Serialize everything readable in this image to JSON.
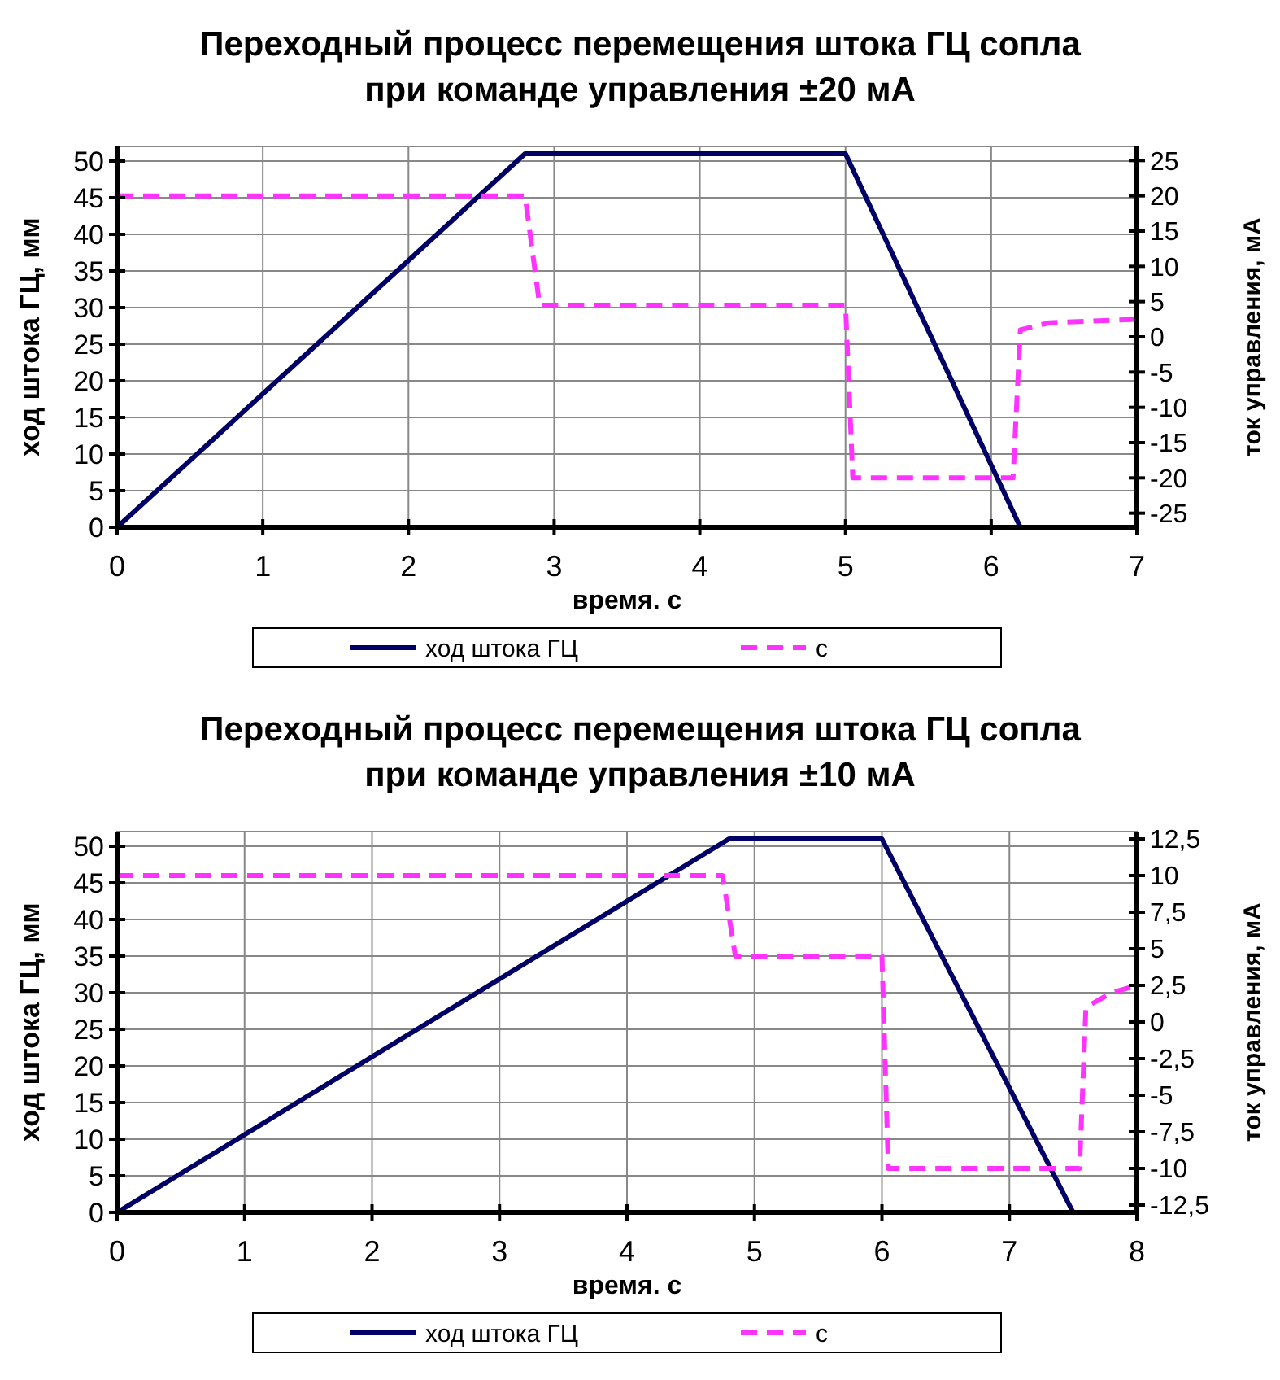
{
  "chart_data": [
    {
      "type": "line",
      "title": "Переходный процесс перемещения штока ГЦ сопла при команде управления ±20 мА",
      "xlabel": "время. с",
      "ylabel": "ход штока ГЦ, мм",
      "y2label": "ток управления, мА",
      "xlim": [
        0,
        7
      ],
      "xticks": [
        0,
        1,
        2,
        3,
        4,
        5,
        6,
        7
      ],
      "ylim": [
        0,
        52
      ],
      "yticks": [
        0,
        5,
        10,
        15,
        20,
        25,
        30,
        35,
        40,
        45,
        50
      ],
      "y2lim": [
        -27,
        27
      ],
      "y2ticks": [
        -25,
        -20,
        -15,
        -10,
        -5,
        0,
        5,
        10,
        15,
        20,
        25
      ],
      "grid": true,
      "legend": "bottom",
      "series": [
        {
          "name": "ход штока ГЦ",
          "color": "#000066",
          "line_style": "solid",
          "x": [
            0,
            2.8,
            5.0,
            6.2,
            7
          ],
          "values": [
            0,
            51,
            51,
            0,
            0
          ]
        },
        {
          "name": "с",
          "color": "#ff33ff",
          "line_style": "dashed",
          "axis": "y2",
          "x": [
            0,
            2.8,
            2.9,
            5.0,
            5.05,
            6.15,
            6.2,
            6.4,
            7
          ],
          "values": [
            20,
            20,
            4.5,
            4.5,
            -20,
            -20,
            1,
            2,
            2.5
          ]
        }
      ]
    },
    {
      "type": "line",
      "title": "Переходный процесс перемещения штока ГЦ сопла при команде управления ±10 мА",
      "xlabel": "время. с",
      "ylabel": "ход штока ГЦ, мм",
      "y2label": "ток управления, мА",
      "xlim": [
        0,
        8
      ],
      "xticks": [
        0,
        1,
        2,
        3,
        4,
        5,
        6,
        7,
        8
      ],
      "ylim": [
        0,
        52
      ],
      "yticks": [
        0,
        5,
        10,
        15,
        20,
        25,
        30,
        35,
        40,
        45,
        50
      ],
      "y2lim": [
        -13,
        13
      ],
      "y2ticks": [
        {
          "value": -12.5,
          "label": "-12,5"
        },
        -10,
        {
          "value": -7.5,
          "label": "-7,5"
        },
        -5,
        {
          "value": -2.5,
          "label": "-2,5"
        },
        0,
        {
          "value": 2.5,
          "label": "2,5"
        },
        5,
        {
          "value": 7.5,
          "label": "7,5"
        },
        10,
        {
          "value": 12.5,
          "label": "12,5"
        }
      ],
      "grid": true,
      "legend": "bottom",
      "series": [
        {
          "name": "ход штока ГЦ",
          "color": "#000066",
          "line_style": "solid",
          "x": [
            0,
            4.8,
            6.0,
            7.5,
            8
          ],
          "values": [
            0,
            51,
            51,
            0,
            0
          ]
        },
        {
          "name": "с",
          "color": "#ff33ff",
          "line_style": "dashed",
          "axis": "y2",
          "x": [
            0,
            4.75,
            4.85,
            6.0,
            6.05,
            7.55,
            7.6,
            7.8,
            8
          ],
          "values": [
            10,
            10,
            4.5,
            4.5,
            -10,
            -10,
            1,
            2,
            2.5
          ]
        }
      ]
    }
  ]
}
